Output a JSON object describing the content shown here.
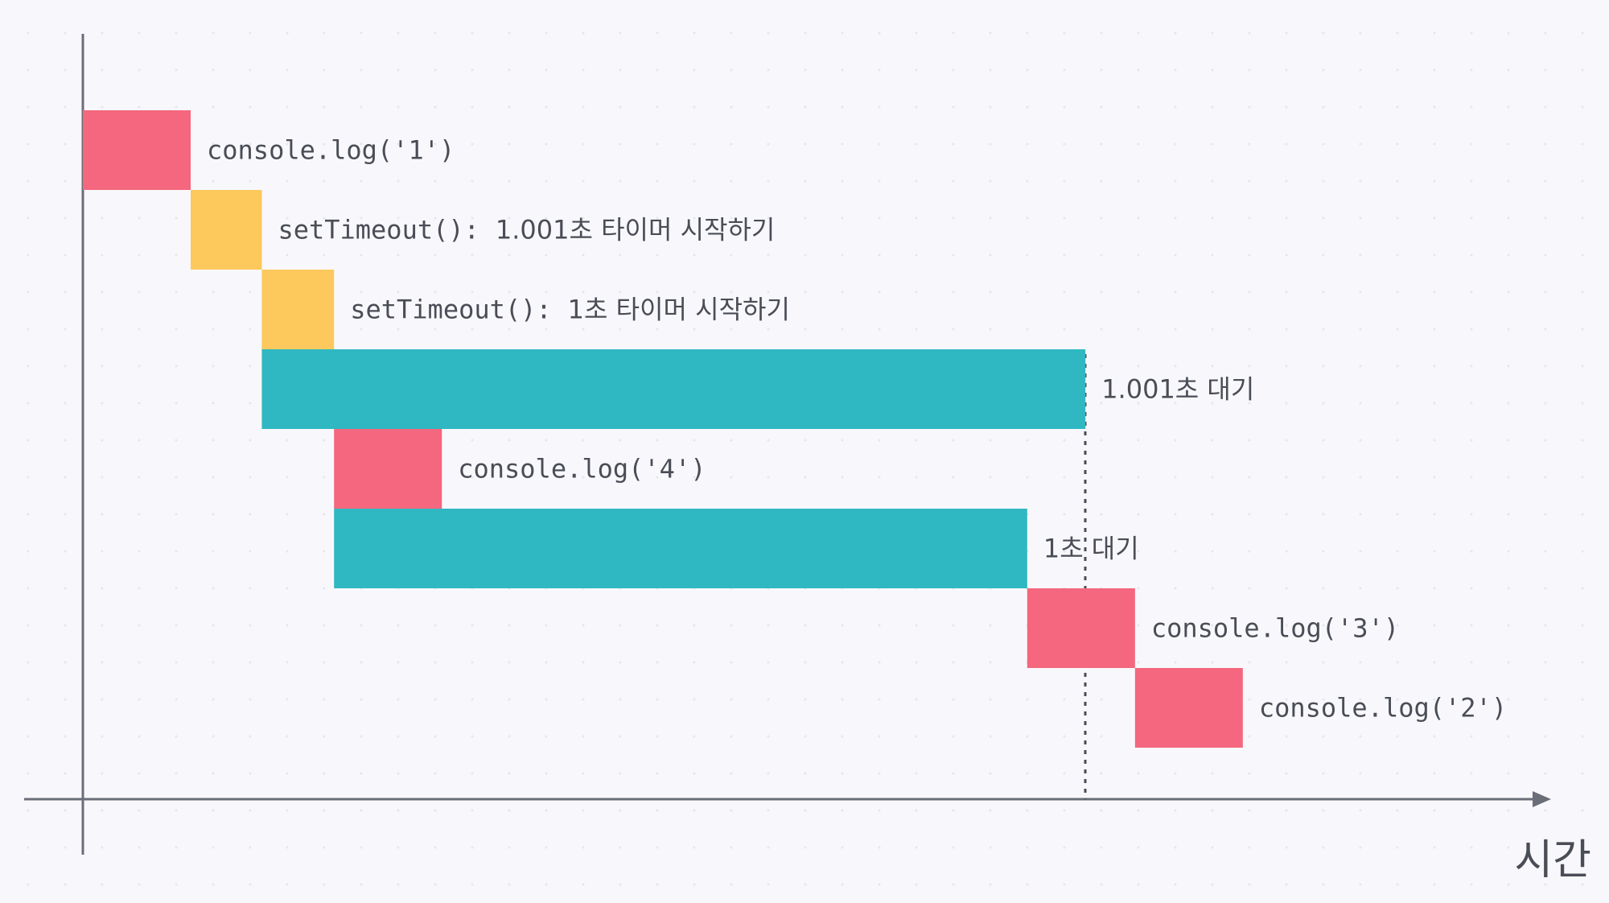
{
  "axis": {
    "x_label": "시간"
  },
  "colors": {
    "log": "#f4677e",
    "timer": "#fdc85c",
    "wait": "#2fb8c2",
    "axis": "#6b6e78",
    "text": "#4a4d56"
  },
  "rows": [
    {
      "kind": "log",
      "label_code": "console.log('1')",
      "label_text": "",
      "start": 0,
      "end": 1
    },
    {
      "kind": "timer",
      "label_code": "setTimeout():",
      "label_text": "1.001초 타이머 시작하기",
      "start": 1,
      "end": 1.66
    },
    {
      "kind": "timer",
      "label_code": "setTimeout():",
      "label_text": "1초 타이머 시작하기",
      "start": 1.66,
      "end": 2.33
    },
    {
      "kind": "wait",
      "label_code": "",
      "label_text": "1.001초 대기",
      "start": 1.66,
      "end": 9.3
    },
    {
      "kind": "log",
      "label_code": "console.log('4')",
      "label_text": "",
      "start": 2.33,
      "end": 3.33
    },
    {
      "kind": "wait",
      "label_code": "",
      "label_text": "1초 대기",
      "start": 2.33,
      "end": 8.76
    },
    {
      "kind": "log",
      "label_code": "console.log('3')",
      "label_text": "",
      "start": 8.76,
      "end": 9.76
    },
    {
      "kind": "log",
      "label_code": "console.log('2')",
      "label_text": "",
      "start": 9.76,
      "end": 10.76
    }
  ]
}
